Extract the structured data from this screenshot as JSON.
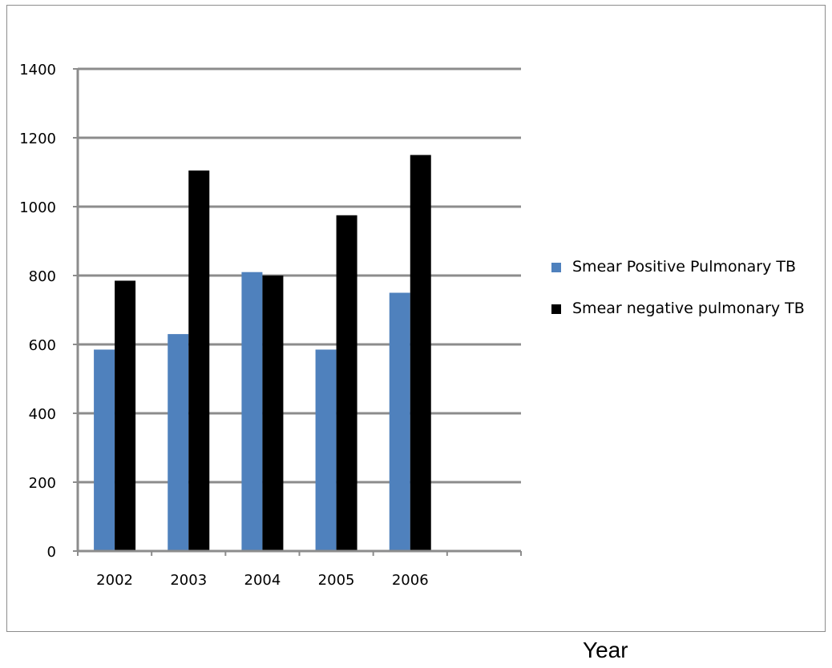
{
  "chart_data": {
    "type": "bar",
    "categories": [
      "2002",
      "2003",
      "2004",
      "2005",
      "2006"
    ],
    "series": [
      {
        "name": "Smear Positive Pulmonary TB",
        "values": [
          585,
          630,
          810,
          585,
          750
        ],
        "color": "#4f81bd"
      },
      {
        "name": "Smear negative pulmonary TB",
        "values": [
          785,
          1105,
          800,
          975,
          1150
        ],
        "color": "#000000"
      }
    ],
    "y_ticks": [
      "0",
      "200",
      "400",
      "600",
      "800",
      "1000",
      "1200",
      "1400"
    ],
    "ylim": [
      0,
      1400
    ],
    "xlabel": "Year",
    "grid": true,
    "legend": "right",
    "slots": 6
  }
}
